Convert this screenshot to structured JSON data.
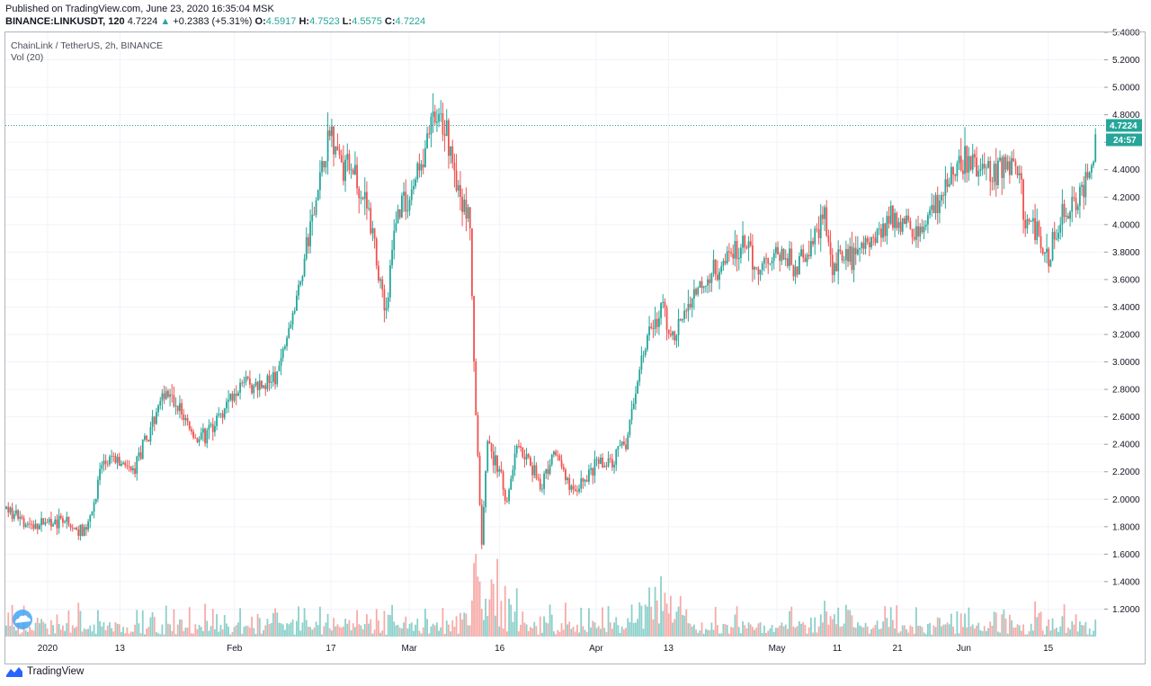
{
  "header": {
    "published_text": "Published on TradingView.com, June 23, 2020 16:35:04 MSK",
    "symbol": "BINANCE:LINKUSDT, 120",
    "last": "4.7224",
    "change_arrow": "▲",
    "change": "+0.2383 (+5.31%)",
    "o_label": "O:",
    "o_value": "4.5917",
    "h_label": "H:",
    "h_value": "4.7523",
    "l_label": "L:",
    "l_value": "4.5575",
    "c_label": "C:",
    "c_value": "4.7224"
  },
  "legend": {
    "series_title": "ChainLink / TetherUS, 2h, BINANCE",
    "volume_title": "Vol (20)"
  },
  "footer": {
    "brand": "TradingView"
  },
  "colors": {
    "up": "#26a69a",
    "down": "#ef5350",
    "vol_up": "#80cbc4",
    "vol_down": "#f5a29f",
    "grid": "#f0f3fa",
    "axis_text": "#131722",
    "last_price_bg": "#26a69a"
  },
  "icons": {
    "watermark": "cloud-icon",
    "brand": "tradingview-logo-icon"
  },
  "chart_data": {
    "type": "candlestick",
    "price_scale": "right",
    "ylim": [
      1.0,
      5.4
    ],
    "y_ticks": [
      "5.4000",
      "5.2000",
      "5.0000",
      "4.8000",
      "4.6000",
      "4.4000",
      "4.2000",
      "4.0000",
      "3.8000",
      "3.6000",
      "3.4000",
      "3.2000",
      "3.0000",
      "2.8000",
      "2.6000",
      "2.4000",
      "2.2000",
      "2.0000",
      "1.8000",
      "1.6000",
      "1.4000",
      "1.2000"
    ],
    "x_ticks": [
      "2020",
      "13",
      "Feb",
      "17",
      "Mar",
      "16",
      "Apr",
      "13",
      "May",
      "11",
      "21",
      "Jun",
      "15"
    ],
    "last_price_label": "4.7224",
    "countdown_label": "24:57",
    "last_price": 4.7224,
    "grid": true,
    "price_path": [
      {
        "x": "Dec 25",
        "y": 1.93
      },
      {
        "x": "Dec 30",
        "y": 1.8
      },
      {
        "x": "Jan 1",
        "y": 1.84
      },
      {
        "x": "Jan 4",
        "y": 1.82
      },
      {
        "x": "Jan 6",
        "y": 1.76
      },
      {
        "x": "Jan 8",
        "y": 1.82
      },
      {
        "x": "Jan 10",
        "y": 2.25
      },
      {
        "x": "Jan 12",
        "y": 2.28
      },
      {
        "x": "Jan 15",
        "y": 2.2
      },
      {
        "x": "Jan 18",
        "y": 2.48
      },
      {
        "x": "Jan 20",
        "y": 2.8
      },
      {
        "x": "Jan 23",
        "y": 2.65
      },
      {
        "x": "Jan 26",
        "y": 2.42
      },
      {
        "x": "Jan 29",
        "y": 2.58
      },
      {
        "x": "Feb 2",
        "y": 2.88
      },
      {
        "x": "Feb 5",
        "y": 2.8
      },
      {
        "x": "Feb 8",
        "y": 2.9
      },
      {
        "x": "Feb 11",
        "y": 3.4
      },
      {
        "x": "Feb 14",
        "y": 4.05
      },
      {
        "x": "Feb 16",
        "y": 4.5
      },
      {
        "x": "Feb 17",
        "y": 4.7
      },
      {
        "x": "Feb 19",
        "y": 4.45
      },
      {
        "x": "Feb 21",
        "y": 4.4
      },
      {
        "x": "Feb 23",
        "y": 4.15
      },
      {
        "x": "Feb 25",
        "y": 3.65
      },
      {
        "x": "Feb 26",
        "y": 3.35
      },
      {
        "x": "Feb 28",
        "y": 4.1
      },
      {
        "x": "Mar 1",
        "y": 4.2
      },
      {
        "x": "Mar 3",
        "y": 4.45
      },
      {
        "x": "Mar 5",
        "y": 4.8
      },
      {
        "x": "Mar 7",
        "y": 4.72
      },
      {
        "x": "Mar 9",
        "y": 4.3
      },
      {
        "x": "Mar 11",
        "y": 4.0
      },
      {
        "x": "Mar 12",
        "y": 2.7
      },
      {
        "x": "Mar 13",
        "y": 1.7
      },
      {
        "x": "Mar 14",
        "y": 2.4
      },
      {
        "x": "Mar 16",
        "y": 2.2
      },
      {
        "x": "Mar 17",
        "y": 1.95
      },
      {
        "x": "Mar 19",
        "y": 2.45
      },
      {
        "x": "Mar 21",
        "y": 2.25
      },
      {
        "x": "Mar 23",
        "y": 2.1
      },
      {
        "x": "Mar 25",
        "y": 2.35
      },
      {
        "x": "Mar 28",
        "y": 2.05
      },
      {
        "x": "Apr 1",
        "y": 2.25
      },
      {
        "x": "Apr 4",
        "y": 2.3
      },
      {
        "x": "Apr 6",
        "y": 2.4
      },
      {
        "x": "Apr 8",
        "y": 2.9
      },
      {
        "x": "Apr 10",
        "y": 3.25
      },
      {
        "x": "Apr 12",
        "y": 3.4
      },
      {
        "x": "Apr 14",
        "y": 3.15
      },
      {
        "x": "Apr 16",
        "y": 3.4
      },
      {
        "x": "Apr 18",
        "y": 3.55
      },
      {
        "x": "Apr 20",
        "y": 3.65
      },
      {
        "x": "Apr 22",
        "y": 3.75
      },
      {
        "x": "Apr 25",
        "y": 3.85
      },
      {
        "x": "Apr 28",
        "y": 3.7
      },
      {
        "x": "May 1",
        "y": 3.8
      },
      {
        "x": "May 4",
        "y": 3.68
      },
      {
        "x": "May 7",
        "y": 3.85
      },
      {
        "x": "May 9",
        "y": 4.1
      },
      {
        "x": "May 10",
        "y": 3.7
      },
      {
        "x": "May 12",
        "y": 3.75
      },
      {
        "x": "May 15",
        "y": 3.82
      },
      {
        "x": "May 18",
        "y": 3.95
      },
      {
        "x": "May 20",
        "y": 4.05
      },
      {
        "x": "May 22",
        "y": 4.0
      },
      {
        "x": "May 25",
        "y": 3.95
      },
      {
        "x": "May 28",
        "y": 4.15
      },
      {
        "x": "May 31",
        "y": 4.45
      },
      {
        "x": "Jun 2",
        "y": 4.45
      },
      {
        "x": "Jun 5",
        "y": 4.4
      },
      {
        "x": "Jun 8",
        "y": 4.45
      },
      {
        "x": "Jun 10",
        "y": 4.4
      },
      {
        "x": "Jun 11",
        "y": 4.05
      },
      {
        "x": "Jun 13",
        "y": 3.95
      },
      {
        "x": "Jun 15",
        "y": 3.7
      },
      {
        "x": "Jun 16",
        "y": 3.95
      },
      {
        "x": "Jun 18",
        "y": 4.1
      },
      {
        "x": "Jun 20",
        "y": 4.15
      },
      {
        "x": "Jun 22",
        "y": 4.4
      },
      {
        "x": "Jun 23",
        "y": 4.72
      }
    ]
  }
}
